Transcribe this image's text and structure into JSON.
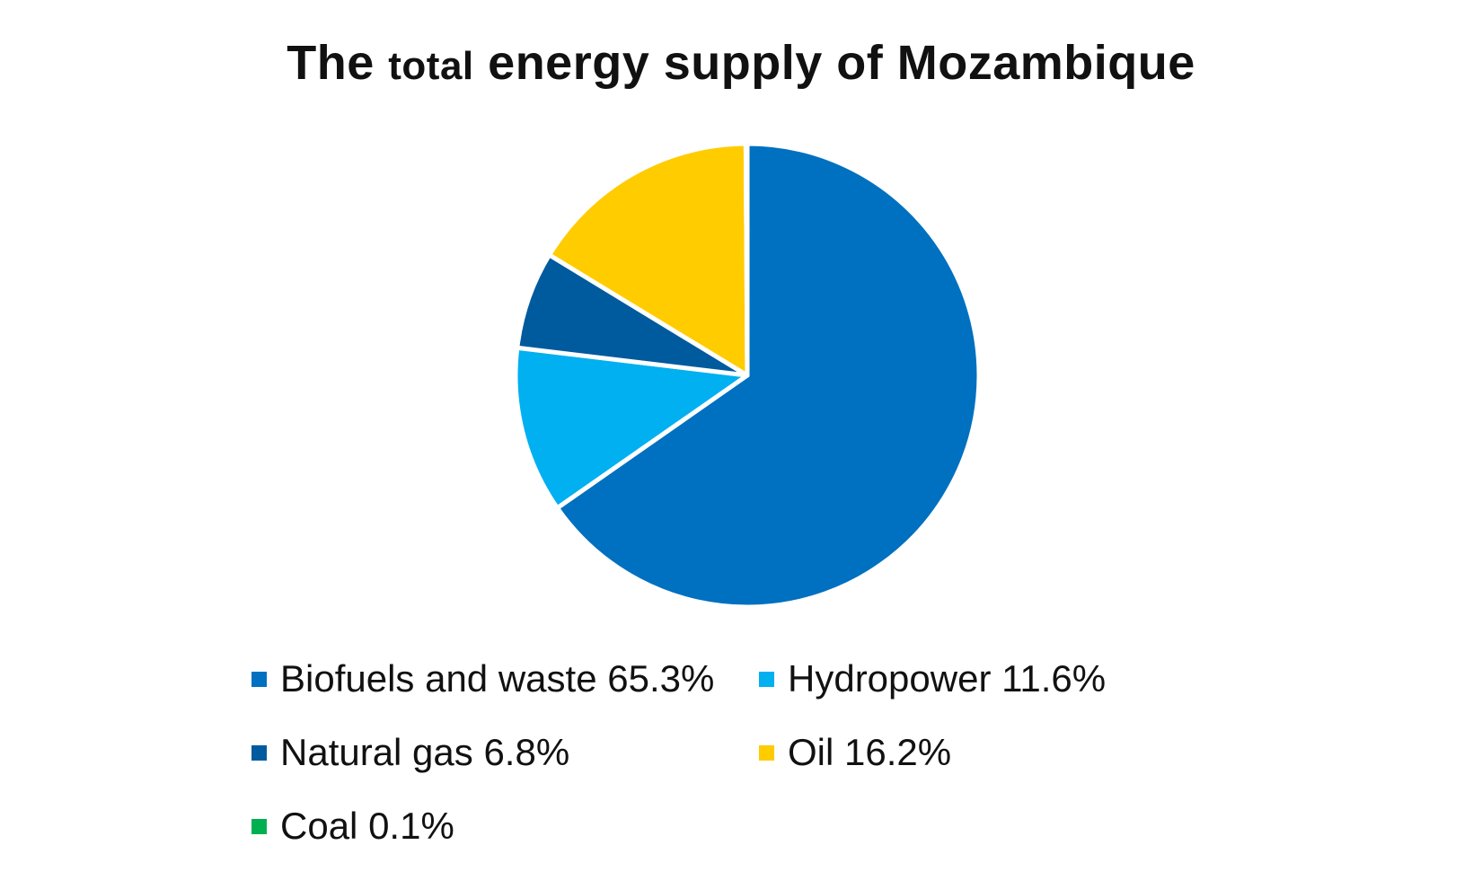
{
  "chart_data": {
    "type": "pie",
    "title_parts": [
      "The ",
      "total",
      " energy supply of Mozambique"
    ],
    "slices": [
      {
        "label": "Biofuels and waste",
        "value": 65.3,
        "value_text": "65.3%",
        "color": "#0070C0"
      },
      {
        "label": "Hydropower",
        "value": 11.6,
        "value_text": "11.6%",
        "color": "#00B0F0"
      },
      {
        "label": "Natural gas",
        "value": 6.8,
        "value_text": "6.8%",
        "color": "#005A9E"
      },
      {
        "label": "Oil",
        "value": 16.2,
        "value_text": "16.2%",
        "color": "#FFCC00"
      },
      {
        "label": "Coal",
        "value": 0.1,
        "value_text": "0.1%",
        "color": "#00B050"
      }
    ],
    "slice_order_clockwise_from_top": [
      "Biofuels and waste",
      "Hydropower",
      "Natural gas",
      "Oil",
      "Coal"
    ],
    "legend_position": "bottom"
  }
}
